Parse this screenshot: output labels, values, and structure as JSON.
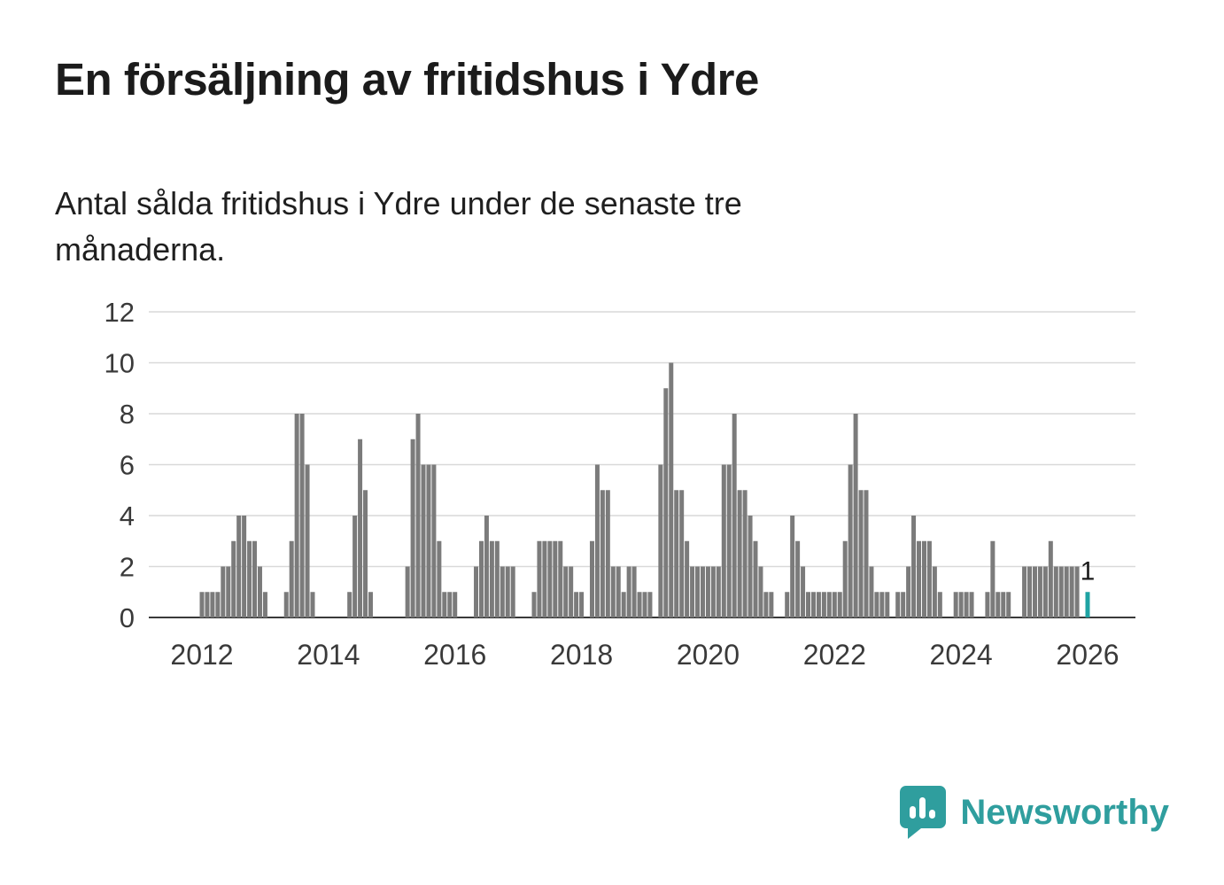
{
  "chart_data": {
    "type": "bar",
    "title": "En försäljning av fritidshus i Ydre",
    "subtitle": "Antal sålda fritidshus i Ydre under de senaste tre månaderna.",
    "x_start": "2012-01",
    "x_interval": "monthly",
    "x_tick_labels": [
      "2012",
      "2014",
      "2016",
      "2018",
      "2020",
      "2022",
      "2024",
      "2026"
    ],
    "y_ticks": [
      0,
      2,
      4,
      6,
      8,
      10,
      12
    ],
    "ylim": [
      0,
      12
    ],
    "grid": true,
    "legend": false,
    "highlight_last_bar": true,
    "last_value_label": "1",
    "values": [
      1,
      1,
      1,
      1,
      2,
      2,
      3,
      4,
      4,
      3,
      3,
      2,
      1,
      0,
      0,
      0,
      1,
      3,
      8,
      8,
      6,
      1,
      0,
      0,
      0,
      0,
      0,
      0,
      1,
      4,
      7,
      5,
      1,
      0,
      0,
      0,
      0,
      0,
      0,
      2,
      7,
      8,
      6,
      6,
      6,
      3,
      1,
      1,
      1,
      0,
      0,
      0,
      2,
      3,
      4,
      3,
      3,
      2,
      2,
      2,
      0,
      0,
      0,
      1,
      3,
      3,
      3,
      3,
      3,
      2,
      2,
      1,
      1,
      0,
      3,
      6,
      5,
      5,
      2,
      2,
      1,
      2,
      2,
      1,
      1,
      1,
      0,
      6,
      9,
      10,
      5,
      5,
      3,
      2,
      2,
      2,
      2,
      2,
      2,
      6,
      6,
      8,
      5,
      5,
      4,
      3,
      2,
      1,
      1,
      0,
      0,
      1,
      4,
      3,
      2,
      1,
      1,
      1,
      1,
      1,
      1,
      1,
      3,
      6,
      8,
      5,
      5,
      2,
      1,
      1,
      1,
      0,
      1,
      1,
      2,
      4,
      3,
      3,
      3,
      2,
      1,
      0,
      0,
      1,
      1,
      1,
      1,
      0,
      0,
      1,
      3,
      1,
      1,
      1,
      0,
      0,
      2,
      2,
      2,
      2,
      2,
      3,
      2,
      2,
      2,
      2,
      2,
      0,
      1
    ]
  },
  "brand": {
    "label": "Newsworthy"
  },
  "colors": {
    "bar": "#7b7b7b",
    "highlight": "#1fa3a3",
    "grid": "#d9d9d9",
    "axis": "#3a3a3a",
    "tick_text": "#3a3a3a",
    "title_text": "#1b1b1b",
    "annotation": "#1a1a1a",
    "brand": "#2f9e9e"
  }
}
